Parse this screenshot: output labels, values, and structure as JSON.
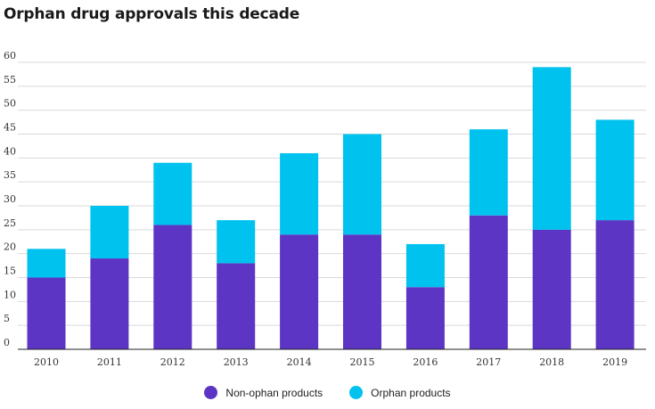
{
  "chart_data": {
    "type": "bar",
    "stacked": true,
    "title": "Orphan drug approvals this decade",
    "xlabel": "",
    "ylabel": "",
    "ylim": [
      0,
      60
    ],
    "yticks": [
      0,
      5,
      10,
      15,
      20,
      25,
      30,
      35,
      40,
      45,
      50,
      55,
      60
    ],
    "grid": true,
    "legend_position": "bottom",
    "categories": [
      "2010",
      "2011",
      "2012",
      "2013",
      "2014",
      "2015",
      "2016",
      "2017",
      "2018",
      "2019"
    ],
    "series": [
      {
        "name": "Non-ophan products",
        "color": "#5c35c4",
        "values": [
          15,
          19,
          26,
          18,
          24,
          24,
          13,
          28,
          25,
          27
        ]
      },
      {
        "name": "Orphan products",
        "color": "#00c2ee",
        "values": [
          6,
          11,
          13,
          9,
          17,
          21,
          9,
          18,
          34,
          21
        ]
      }
    ]
  }
}
